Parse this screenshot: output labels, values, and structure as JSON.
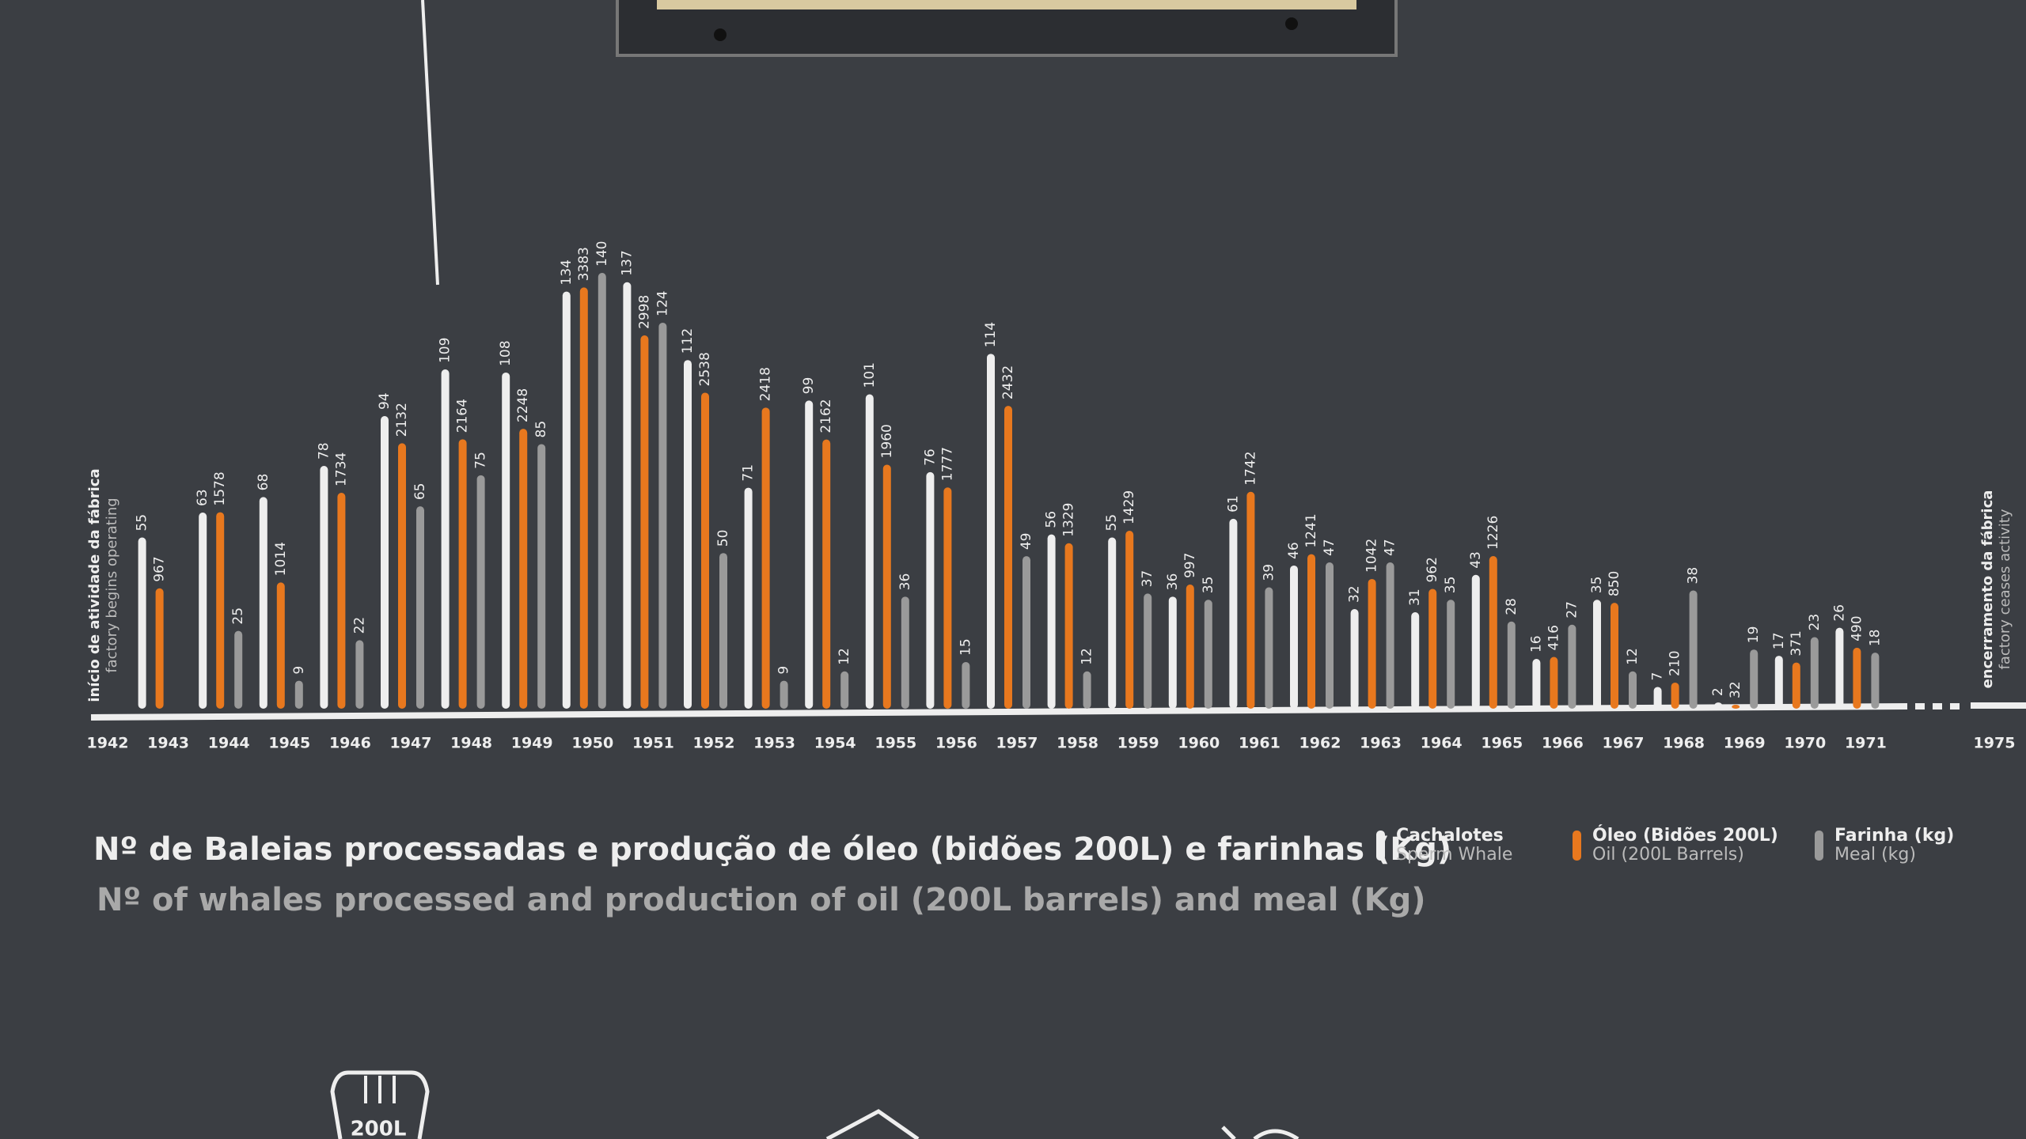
{
  "chart_data": {
    "type": "bar",
    "title": "Nº de Baleias processadas e produção de óleo (bidões 200L) e farinhas (Kg)",
    "subtitle": "Nº of whales processed and production of oil (200L barrels) and meal (Kg)",
    "categories": [
      "1942",
      "1943",
      "1944",
      "1945",
      "1946",
      "1947",
      "1948",
      "1949",
      "1950",
      "1951",
      "1952",
      "1953",
      "1954",
      "1955",
      "1956",
      "1957",
      "1958",
      "1959",
      "1960",
      "1961",
      "1962",
      "1963",
      "1964",
      "1965",
      "1966",
      "1967",
      "1968",
      "1969",
      "1970",
      "1971",
      "1975"
    ],
    "series": [
      {
        "name": "Cachalotes",
        "name_en": "Sperm Whale",
        "color": "#eeeeee",
        "axis": "y",
        "values": [
          null,
          55,
          63,
          68,
          78,
          94,
          109,
          108,
          134,
          137,
          112,
          71,
          99,
          101,
          76,
          114,
          56,
          55,
          36,
          61,
          46,
          32,
          31,
          43,
          16,
          35,
          7,
          2,
          17,
          26,
          null
        ]
      },
      {
        "name": "Óleo (Bidões 200L)",
        "name_en": "Oil (200L Barrels)",
        "color": "#e8781e",
        "axis": "y2",
        "values": [
          null,
          967,
          1578,
          1014,
          1734,
          2132,
          2164,
          2248,
          3383,
          2998,
          2538,
          2418,
          2162,
          1960,
          1777,
          2432,
          1329,
          1429,
          997,
          1742,
          1241,
          1042,
          962,
          1226,
          416,
          850,
          210,
          32,
          371,
          490,
          null
        ]
      },
      {
        "name": "Farinha (kg)",
        "name_en": "Meal (kg)",
        "color": "#9a9a9a",
        "axis": "y",
        "values": [
          null,
          null,
          25,
          9,
          22,
          65,
          75,
          85,
          140,
          124,
          50,
          9,
          12,
          36,
          15,
          49,
          12,
          37,
          35,
          39,
          47,
          47,
          35,
          28,
          27,
          12,
          38,
          19,
          23,
          18,
          null
        ]
      }
    ],
    "ylim": [
      0,
      140
    ],
    "y2lim": [
      0,
      3500
    ],
    "annotations": [
      {
        "text": "início de atividade da fábrica",
        "text_en": "factory begins operating"
      },
      {
        "text": "encerramento da fábrica",
        "text_en": "factory ceases activity"
      }
    ]
  },
  "icon_label": "200L"
}
